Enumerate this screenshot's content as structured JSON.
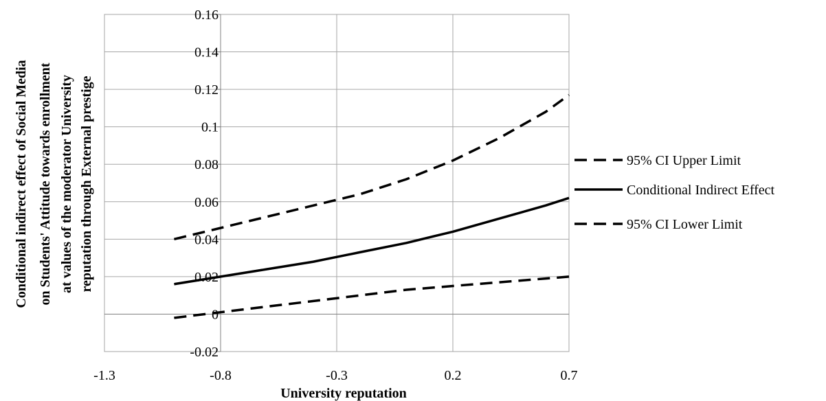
{
  "chart_data": {
    "type": "line",
    "title": "",
    "xlabel": "University reputation",
    "ylabel_lines": [
      "Conditional indirect effect of Social Media",
      "on Students' Attitude towards enrollment",
      "at values of the moderator University",
      "reputation through  External prestige"
    ],
    "xlim": [
      -1.3,
      0.7
    ],
    "ylim": [
      -0.02,
      0.16
    ],
    "x_ticks": [
      "-1.3",
      "-0.8",
      "-0.3",
      "0.2",
      "0.7"
    ],
    "y_ticks": [
      "-0.02",
      "0",
      "0.02",
      "0.04",
      "0.06",
      "0.08",
      "0.1",
      "0.12",
      "0.14",
      "0.16"
    ],
    "grid": true,
    "legend_position": "right",
    "series": [
      {
        "name": "95% CI Upper Limit",
        "style": "dashed",
        "x": [
          -1.0,
          -0.8,
          -0.6,
          -0.4,
          -0.2,
          0.0,
          0.2,
          0.4,
          0.6,
          0.7
        ],
        "y": [
          0.04,
          0.046,
          0.052,
          0.058,
          0.064,
          0.072,
          0.082,
          0.094,
          0.108,
          0.117
        ]
      },
      {
        "name": "Conditional Indirect Effect",
        "style": "solid",
        "x": [
          -1.0,
          -0.8,
          -0.6,
          -0.4,
          -0.2,
          0.0,
          0.2,
          0.4,
          0.6,
          0.7
        ],
        "y": [
          0.016,
          0.02,
          0.024,
          0.028,
          0.033,
          0.038,
          0.044,
          0.051,
          0.058,
          0.062
        ]
      },
      {
        "name": "95% CI Lower Limit",
        "style": "dashed",
        "x": [
          -1.0,
          -0.8,
          -0.6,
          -0.4,
          -0.2,
          0.0,
          0.2,
          0.4,
          0.6,
          0.7
        ],
        "y": [
          -0.002,
          0.001,
          0.004,
          0.007,
          0.01,
          0.013,
          0.015,
          0.017,
          0.019,
          0.02
        ]
      }
    ]
  }
}
